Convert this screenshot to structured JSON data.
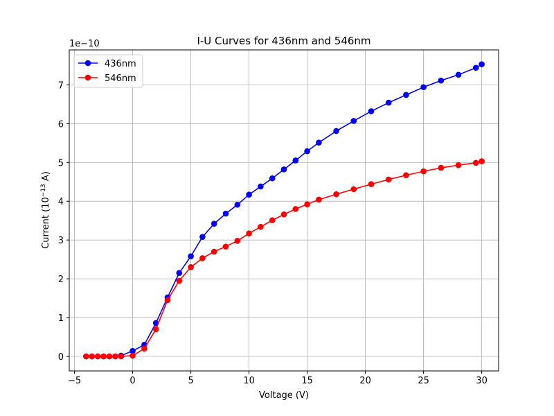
{
  "chart_data": {
    "type": "line",
    "title": "I-U Curves for 436nm and 546nm",
    "xlabel": "Voltage (V)",
    "ylabel_prefix": "Current (10",
    "ylabel_exp": "−13",
    "ylabel_suffix": " A)",
    "y_offset_text": "1e−10",
    "xlim": [
      -5.45,
      31.45
    ],
    "ylim": [
      -0.375,
      7.9
    ],
    "y_scale_factor": 1e-10,
    "xticks": [
      -5,
      0,
      5,
      10,
      15,
      20,
      25,
      30
    ],
    "xtick_labels": [
      "−5",
      "0",
      "5",
      "10",
      "15",
      "20",
      "25",
      "30"
    ],
    "yticks": [
      0,
      1,
      2,
      3,
      4,
      5,
      6,
      7
    ],
    "ytick_labels": [
      "0",
      "1",
      "2",
      "3",
      "4",
      "5",
      "6",
      "7"
    ],
    "grid": true,
    "legend_position": "top-left",
    "series": [
      {
        "name": "436nm",
        "color": "#0000ff",
        "x": [
          -4,
          -3.5,
          -3,
          -2.5,
          -2,
          -1.5,
          -1,
          0,
          1,
          2,
          3,
          4,
          5,
          6,
          7,
          8,
          9,
          10,
          11,
          12,
          13,
          14,
          15,
          16,
          17.5,
          19,
          20.5,
          22,
          23.5,
          25,
          26.5,
          28,
          29.5,
          30
        ],
        "y": [
          0,
          0,
          0,
          0,
          0,
          0,
          0.02,
          0.14,
          0.3,
          0.86,
          1.52,
          2.15,
          2.58,
          3.08,
          3.42,
          3.68,
          3.91,
          4.17,
          4.38,
          4.59,
          4.82,
          5.05,
          5.29,
          5.51,
          5.81,
          6.07,
          6.32,
          6.54,
          6.74,
          6.94,
          7.11,
          7.26,
          7.44,
          7.53
        ]
      },
      {
        "name": "546nm",
        "color": "#ff0000",
        "x": [
          -4,
          -3.5,
          -3,
          -2.5,
          -2,
          -1.5,
          -1,
          0,
          1,
          2,
          3,
          4,
          5,
          6,
          7,
          8,
          9,
          10,
          11,
          12,
          13,
          14,
          15,
          16,
          17.5,
          19,
          20.5,
          22,
          23.5,
          25,
          26.5,
          28,
          29.5,
          30
        ],
        "y": [
          0,
          0,
          0,
          0,
          0,
          0,
          0,
          0.02,
          0.2,
          0.7,
          1.45,
          1.95,
          2.3,
          2.53,
          2.7,
          2.83,
          2.98,
          3.17,
          3.34,
          3.51,
          3.66,
          3.8,
          3.92,
          4.04,
          4.18,
          4.31,
          4.44,
          4.56,
          4.67,
          4.77,
          4.86,
          4.93,
          4.99,
          5.03
        ]
      }
    ]
  }
}
